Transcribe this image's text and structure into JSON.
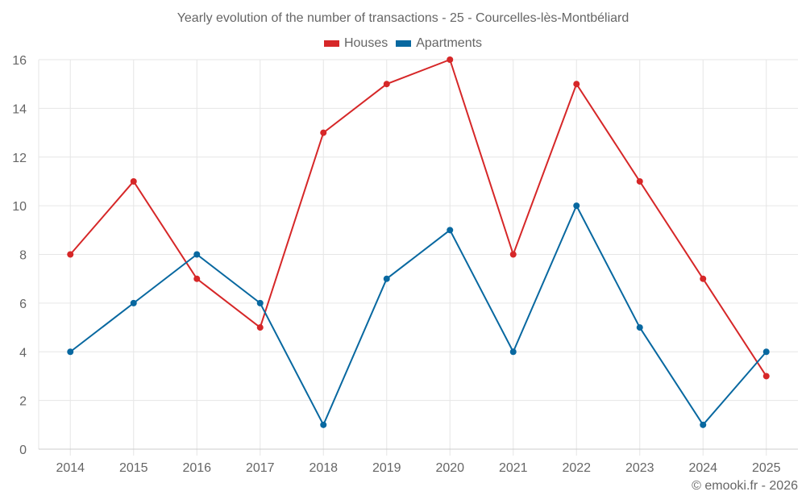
{
  "chart_data": {
    "type": "line",
    "title": "Yearly evolution of the number of transactions - 25 - Courcelles-lès-Montbéliard",
    "xlabel": "",
    "ylabel": "",
    "categories": [
      "2014",
      "2015",
      "2016",
      "2017",
      "2018",
      "2019",
      "2020",
      "2021",
      "2022",
      "2023",
      "2024",
      "2025"
    ],
    "series": [
      {
        "name": "Houses",
        "color": "#d62728",
        "values": [
          8,
          11,
          7,
          5,
          13,
          15,
          16,
          8,
          15,
          11,
          7,
          3
        ]
      },
      {
        "name": "Apartments",
        "color": "#0868a0",
        "values": [
          4,
          6,
          8,
          6,
          1,
          7,
          9,
          4,
          10,
          5,
          1,
          4
        ]
      }
    ],
    "ylim": [
      0,
      16
    ],
    "yticks": [
      0,
      2,
      4,
      6,
      8,
      10,
      12,
      14,
      16
    ],
    "grid": true,
    "legend_position": "top-center"
  },
  "credit": "© emooki.fr - 2026"
}
